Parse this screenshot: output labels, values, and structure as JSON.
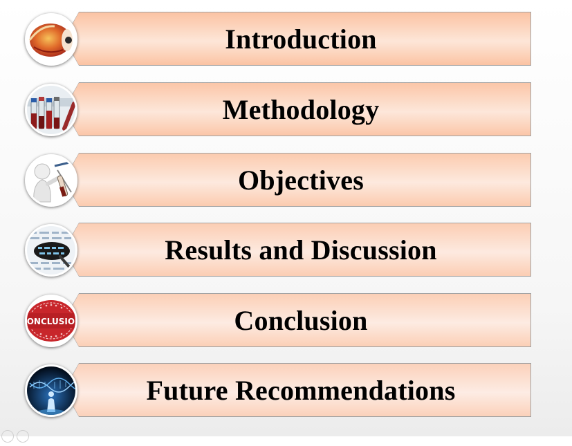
{
  "agenda": {
    "items": [
      {
        "label": "Introduction",
        "icon": "eye-icon",
        "fill": "#fbc3a3"
      },
      {
        "label": "Methodology",
        "icon": "test-tubes-icon",
        "fill": "#fbc6a8"
      },
      {
        "label": "Objectives",
        "icon": "figure-holding-tube-icon",
        "fill": "#fbcbaf"
      },
      {
        "label": "Results and Discussion",
        "icon": "data-sheet-icon",
        "fill": "#fbcdb3"
      },
      {
        "label": "Conclusion",
        "icon": "conclusion-stamp-icon",
        "fill": "#fbcfb6"
      },
      {
        "label": "Future Recommendations",
        "icon": "dna-figure-icon",
        "fill": "#fbd1ba"
      }
    ],
    "stamp_text": "CONCLUSION"
  },
  "colors": {
    "banner_light": "#fde6d8",
    "banner_border": "#a0a0a0",
    "text": "#000000"
  }
}
